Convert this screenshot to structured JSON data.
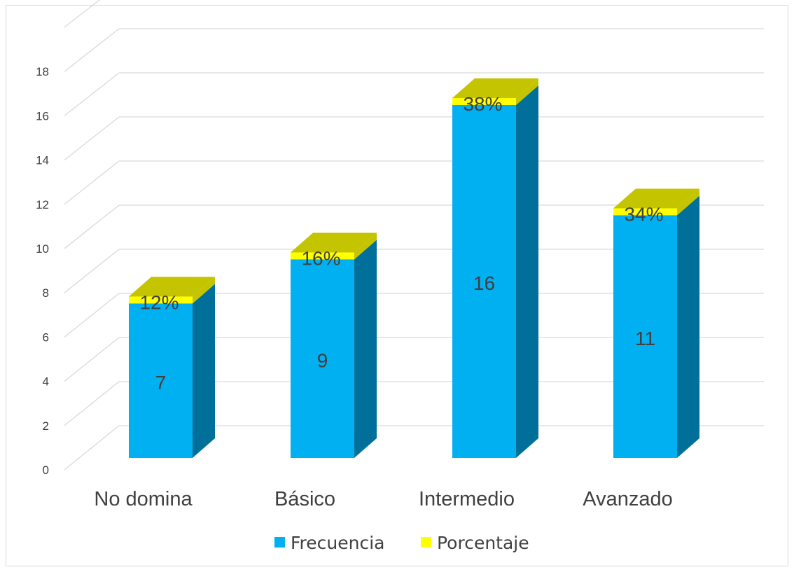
{
  "chart_data": {
    "type": "bar",
    "stacked": true,
    "three_d": true,
    "categories": [
      "No domina",
      "Básico",
      "Intermedio",
      "Avanzado"
    ],
    "series": [
      {
        "name": "Frecuencia",
        "values": [
          7,
          9,
          16,
          11
        ],
        "labels": [
          "7",
          "9",
          "16",
          "11"
        ]
      },
      {
        "name": "Porcentaje",
        "values": [
          0.12,
          0.16,
          0.38,
          0.34
        ],
        "labels": [
          "12%",
          "16%",
          "38%",
          "34%"
        ]
      }
    ],
    "y_ticks": [
      "0",
      "2",
      "4",
      "6",
      "8",
      "10",
      "12",
      "14",
      "16",
      "18"
    ],
    "ylim": [
      0,
      18
    ],
    "grid": true,
    "legend_position": "bottom",
    "colors": {
      "Frecuencia_front": "#00b0f0",
      "Frecuencia_side": "#00709a",
      "Porcentaje_front": "#ffff00",
      "Porcentaje_top": "#c4c400",
      "gridline": "#d9d9d9",
      "text": "#404040"
    }
  }
}
